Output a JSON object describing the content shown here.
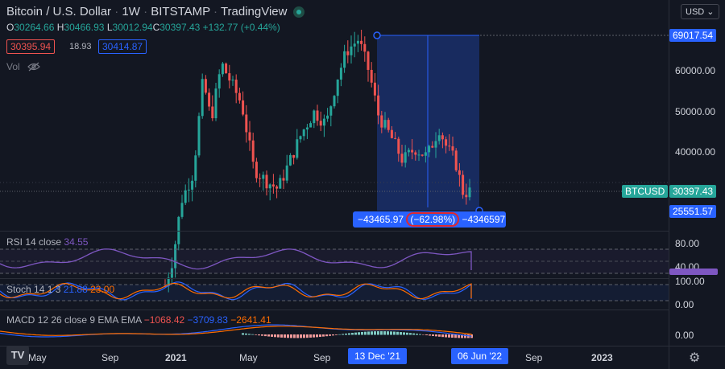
{
  "header": {
    "symbol": "Bitcoin / U.S. Dollar",
    "interval": "1W",
    "exchange": "BITSTAMP",
    "source": "TradingView",
    "status_color": "#26a69a"
  },
  "ohlc": {
    "o_label": "O",
    "o": "30264.66",
    "h_label": "H",
    "h": "30466.93",
    "l_label": "L",
    "l": "30012.94",
    "c_label": "C",
    "c": "30397.43",
    "change": "+132.77 (+0.44%)"
  },
  "order_boxes": {
    "sell": "30395.94",
    "spread": "18.93",
    "buy": "30414.87"
  },
  "volume_label": "Vol",
  "currency_button": "USD",
  "price_axis": {
    "ticks": [
      "60000.00",
      "50000.00",
      "40000.00"
    ],
    "top_label": "69017.54",
    "current_symbol": "BTCUSD",
    "current_price": "30397.43",
    "low_label": "25551.57"
  },
  "measure": {
    "change_abs": "−43465.97",
    "change_pct": "(−62.98%)",
    "ticks": "−4346597"
  },
  "rsi": {
    "title": "RSI",
    "params": "14 close",
    "value": "34.55",
    "ticks": [
      "80.00",
      "40.00"
    ]
  },
  "stoch": {
    "title": "Stoch",
    "params": "14 1 3",
    "k": "21.88",
    "d": "23.00",
    "ticks": [
      "100.00",
      "0.00"
    ]
  },
  "macd": {
    "title": "MACD",
    "params": "12 26 close 9 EMA EMA",
    "hist": "−1068.42",
    "macd": "−3709.83",
    "signal": "−2641.41",
    "ticks": [
      "0.00"
    ]
  },
  "time_axis": {
    "labels": [
      "May",
      "Sep",
      "2021",
      "May",
      "Sep",
      "Sep",
      "2023"
    ],
    "range_start": "13 Dec '21",
    "range_end": "06 Jun '22"
  },
  "colors": {
    "up": "#26a69a",
    "down": "#ef5350",
    "accent": "#2962ff",
    "rsi": "#7e57c2",
    "stoch_k": "#2962ff",
    "stoch_d": "#ff6d00"
  }
}
